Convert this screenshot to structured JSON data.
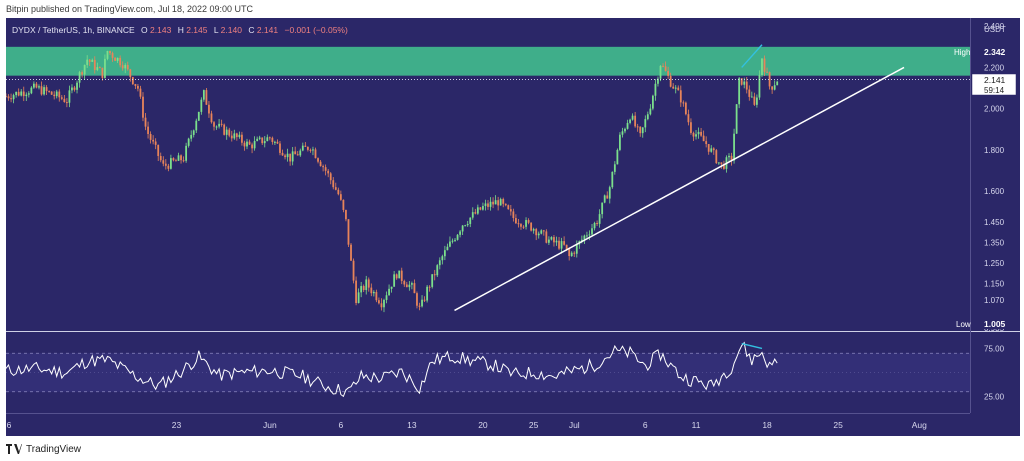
{
  "header": {
    "publisher": "Bitpin published on TradingView.com, Jul 18, 2022 09:00 UTC"
  },
  "footer": {
    "brand": "TradingView"
  },
  "colors": {
    "panel_bg": "#2b2768",
    "zone_green": "#3fae8a",
    "trendline": "#ffffff",
    "candle_up": "#7be08c",
    "candle_down": "#e8845a",
    "rsi_line": "#ffffff",
    "divergence": "#33c0e0",
    "axis_text": "#d8d8ee"
  },
  "chart_data": [
    {
      "type": "candlestick",
      "legend": {
        "symbol": "DYDX / TetherUS, 1h, BINANCE",
        "o_label": "O",
        "o_value": "2.143",
        "h_label": "H",
        "h_value": "2.145",
        "l_label": "L",
        "l_value": "2.140",
        "c_label": "C",
        "c_value": "2.141",
        "change": "−0.001 (−0.05%)"
      },
      "price_unit": "USDT",
      "price_ticks": [
        "2.400",
        "2.200",
        "2.000",
        "1.800",
        "1.600",
        "1.450",
        "1.350",
        "1.250",
        "1.150",
        "1.070",
        "0.935"
      ],
      "price_tick_values": [
        2.4,
        2.2,
        2.0,
        1.8,
        1.6,
        1.45,
        1.35,
        1.25,
        1.15,
        1.07,
        0.935
      ],
      "ylim": [
        0.92,
        2.44
      ],
      "high_label": "High",
      "high_value": "2.342",
      "low_label": "Low",
      "low_value": "1.005",
      "last_price": "2.141",
      "countdown": "59:14",
      "resistance_zone": [
        2.16,
        2.3
      ],
      "x_tick_labels": [
        "6",
        "23",
        "Jun",
        "6",
        "13",
        "20",
        "25",
        "Jul",
        "6",
        "11",
        "18",
        "25",
        "Aug"
      ],
      "x_tick_days": [
        -0.2,
        16.8,
        26,
        33,
        40,
        47,
        52,
        56,
        63,
        68,
        75,
        82,
        90
      ],
      "xlim": [
        0,
        95
      ],
      "trendline": [
        {
          "day": 44.2,
          "price": 1.02
        },
        {
          "day": 88.5,
          "price": 2.2
        }
      ],
      "divergence_line": [
        {
          "day": 72.5,
          "price": 2.2
        },
        {
          "day": 74.5,
          "price": 2.31
        }
      ],
      "price_path": [
        [
          0,
          2.06
        ],
        [
          3,
          2.1
        ],
        [
          6,
          2.04
        ],
        [
          8,
          2.24
        ],
        [
          9.5,
          2.17
        ],
        [
          10,
          2.28
        ],
        [
          11.5,
          2.22
        ],
        [
          13,
          2.1
        ],
        [
          13.8,
          1.9
        ],
        [
          15.5,
          1.72
        ],
        [
          17.5,
          1.76
        ],
        [
          19.5,
          2.07
        ],
        [
          20.5,
          1.92
        ],
        [
          22,
          1.88
        ],
        [
          24,
          1.82
        ],
        [
          26,
          1.86
        ],
        [
          28,
          1.76
        ],
        [
          30,
          1.82
        ],
        [
          31.5,
          1.7
        ],
        [
          32.8,
          1.58
        ],
        [
          33.5,
          1.45
        ],
        [
          34,
          1.25
        ],
        [
          34.5,
          1.08
        ],
        [
          35.5,
          1.15
        ],
        [
          37,
          1.06
        ],
        [
          38.5,
          1.2
        ],
        [
          40,
          1.13
        ],
        [
          40.8,
          1.02
        ],
        [
          41.5,
          1.12
        ],
        [
          43,
          1.28
        ],
        [
          45,
          1.44
        ],
        [
          47,
          1.52
        ],
        [
          48.5,
          1.55
        ],
        [
          50,
          1.47
        ],
        [
          52,
          1.42
        ],
        [
          53.5,
          1.36
        ],
        [
          55,
          1.33
        ],
        [
          55.5,
          1.28
        ],
        [
          57,
          1.38
        ],
        [
          58.2,
          1.45
        ],
        [
          59.5,
          1.62
        ],
        [
          60.5,
          1.86
        ],
        [
          61.5,
          1.97
        ],
        [
          62.5,
          1.86
        ],
        [
          63.5,
          2.02
        ],
        [
          64.5,
          2.22
        ],
        [
          65.5,
          2.13
        ],
        [
          66.5,
          2.05
        ],
        [
          67.5,
          1.9
        ],
        [
          69,
          1.83
        ],
        [
          70.5,
          1.72
        ],
        [
          71.5,
          1.76
        ],
        [
          72.3,
          2.15
        ],
        [
          73,
          2.1
        ],
        [
          73.8,
          2.0
        ],
        [
          74.5,
          2.25
        ],
        [
          75.3,
          2.1
        ],
        [
          76,
          2.141
        ]
      ]
    },
    {
      "type": "line",
      "indicator": "RSI",
      "rsi_ticks": [
        "75.00",
        "25.00"
      ],
      "rsi_tick_values": [
        75,
        25
      ],
      "rsi_bands": [
        70,
        30
      ],
      "ylim": [
        8,
        92
      ],
      "rsi_path": [
        [
          0,
          52
        ],
        [
          3,
          54
        ],
        [
          6,
          50
        ],
        [
          8,
          62
        ],
        [
          10,
          63
        ],
        [
          13,
          45
        ],
        [
          15,
          36
        ],
        [
          17,
          49
        ],
        [
          19,
          66
        ],
        [
          21,
          47
        ],
        [
          23,
          50
        ],
        [
          26,
          52
        ],
        [
          29,
          47
        ],
        [
          32,
          34
        ],
        [
          33.8,
          30
        ],
        [
          35,
          46
        ],
        [
          37,
          44
        ],
        [
          39,
          51
        ],
        [
          40.8,
          34
        ],
        [
          42,
          62
        ],
        [
          44,
          67
        ],
        [
          46,
          62
        ],
        [
          48,
          58
        ],
        [
          50,
          48
        ],
        [
          52,
          50
        ],
        [
          54,
          46
        ],
        [
          56,
          52
        ],
        [
          58,
          58
        ],
        [
          60,
          72
        ],
        [
          61.5,
          70
        ],
        [
          63,
          57
        ],
        [
          64.5,
          69
        ],
        [
          66.5,
          46
        ],
        [
          68,
          41
        ],
        [
          69.5,
          36
        ],
        [
          71.5,
          56
        ],
        [
          72.5,
          79
        ],
        [
          73.5,
          63
        ],
        [
          74.5,
          71
        ],
        [
          75.3,
          55
        ],
        [
          76,
          64
        ]
      ],
      "divergence_line": [
        {
          "day": 72.5,
          "rsi": 80
        },
        {
          "day": 74.5,
          "rsi": 75
        }
      ]
    }
  ]
}
